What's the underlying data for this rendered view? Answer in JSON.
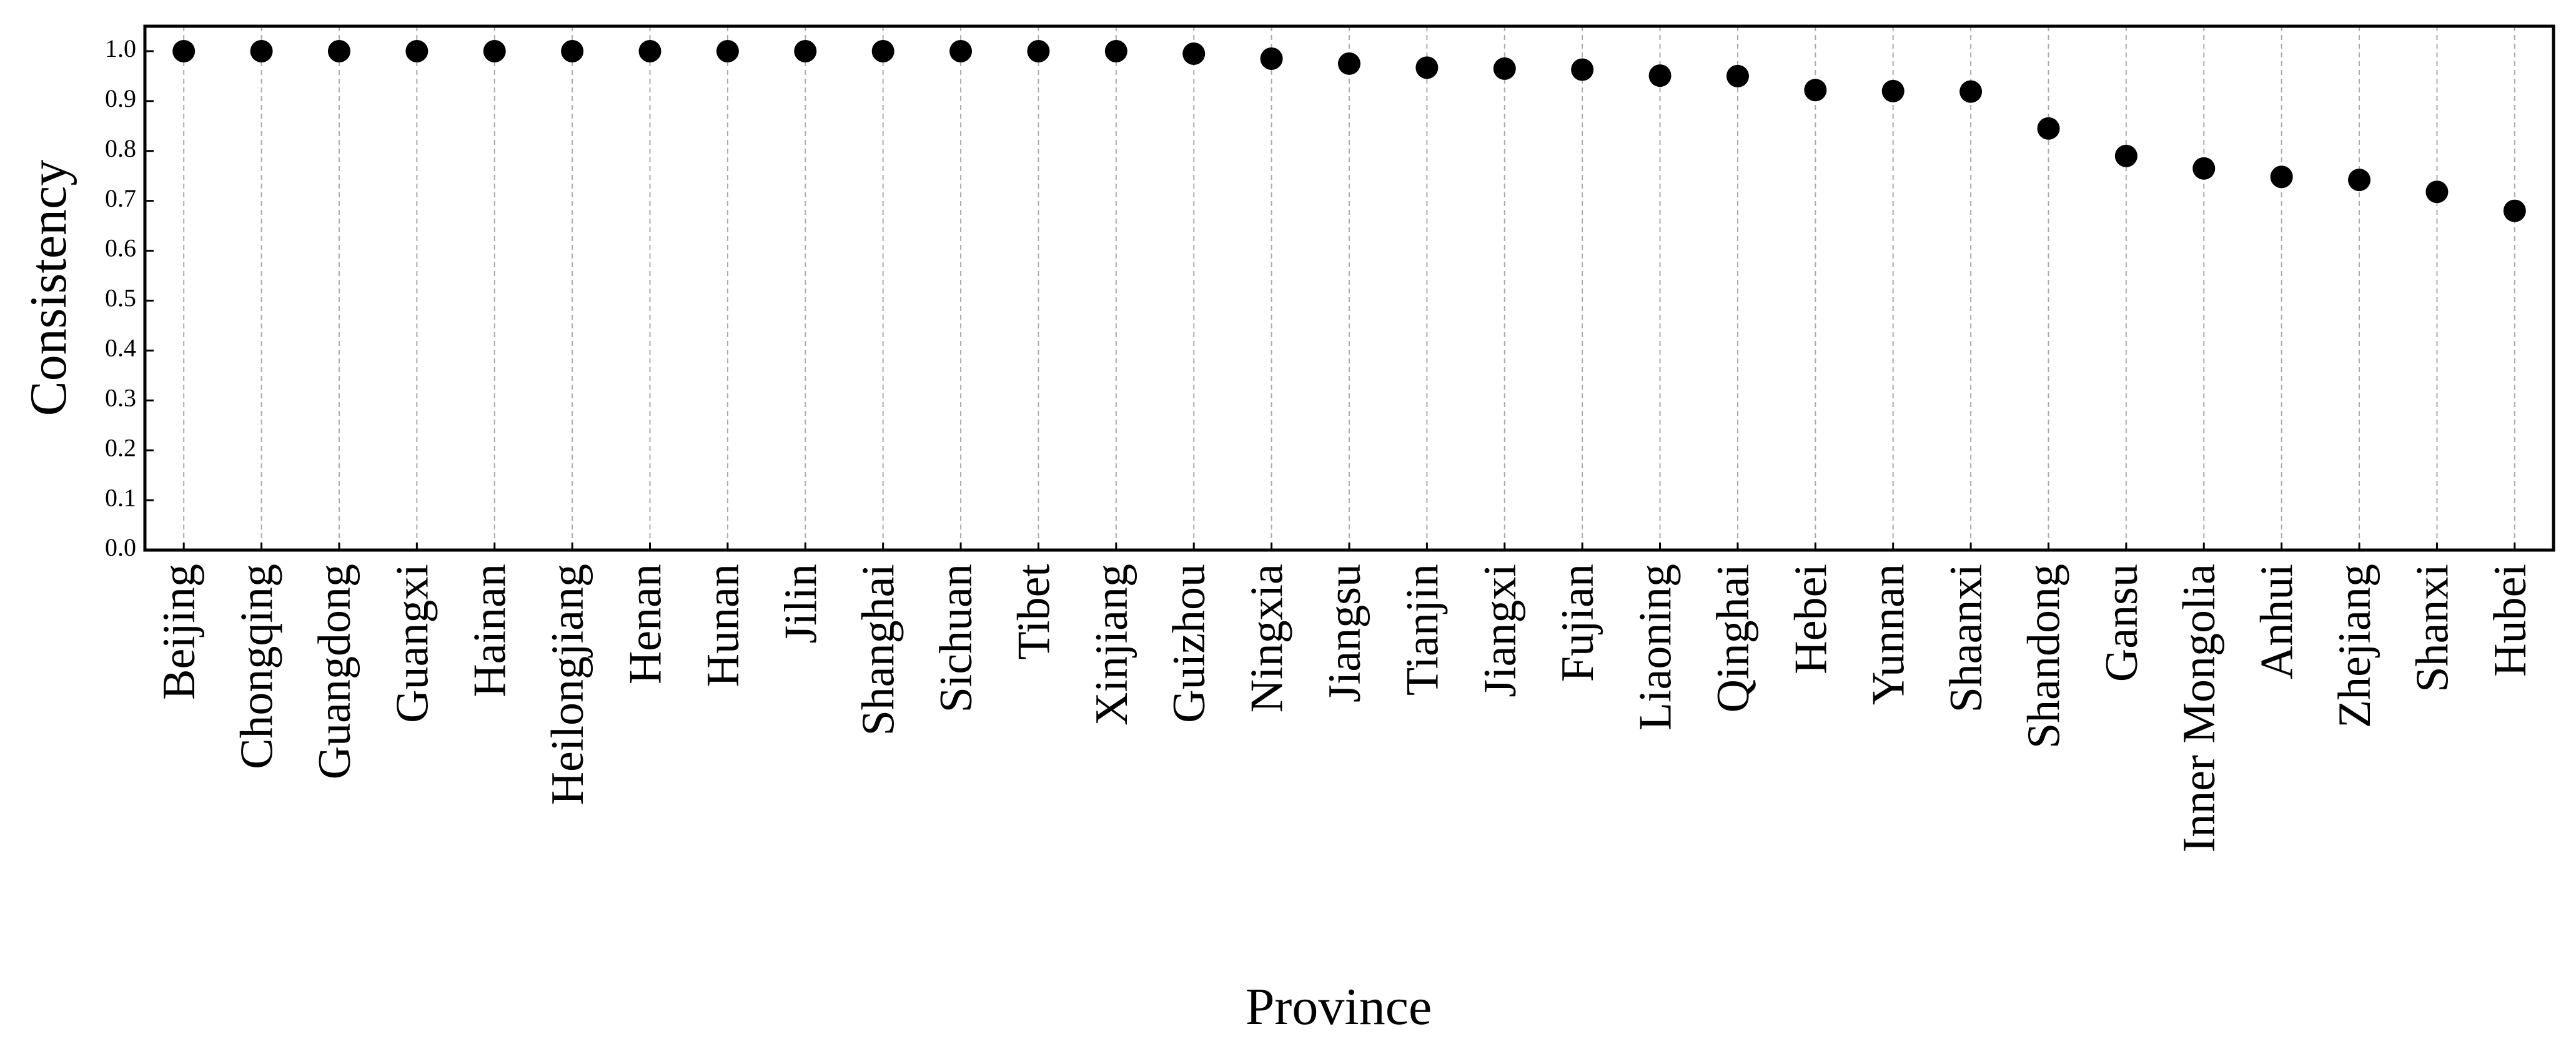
{
  "chart_data": {
    "type": "dot",
    "x_label": "Province",
    "y_label": "Consistency",
    "categories": [
      "Beijing",
      "Chongqing",
      "Guangdong",
      "Guangxi",
      "Hainan",
      "Heilongjiang",
      "Henan",
      "Hunan",
      "Jilin",
      "Shanghai",
      "Sichuan",
      "Tibet",
      "Xinjiang",
      "Guizhou",
      "Ningxia",
      "Jiangsu",
      "Tianjin",
      "Jiangxi",
      "Fujian",
      "Liaoning",
      "Qinghai",
      "Hebei",
      "Yunnan",
      "Shaanxi",
      "Shandong",
      "Gansu",
      "Inner Mongolia",
      "Anhui",
      "Zhejiang",
      "Shanxi",
      "Hubei"
    ],
    "values": [
      1.0,
      1.0,
      1.0,
      1.0,
      1.0,
      1.0,
      1.0,
      1.0,
      1.0,
      1.0,
      1.0,
      1.0,
      1.0,
      0.995,
      0.985,
      0.975,
      0.967,
      0.965,
      0.963,
      0.951,
      0.95,
      0.922,
      0.92,
      0.919,
      0.845,
      0.79,
      0.765,
      0.748,
      0.742,
      0.718,
      0.68
    ],
    "color": "#000000",
    "ylim": [
      0,
      1.05
    ],
    "yticks": [
      {
        "value": 0,
        "label": "0.0"
      },
      0.1,
      0.2,
      0.3,
      0.4,
      0.5,
      0.6,
      0.7,
      0.8,
      0.9,
      {
        "value": 1,
        "label": "1.0"
      }
    ],
    "grid": true
  }
}
